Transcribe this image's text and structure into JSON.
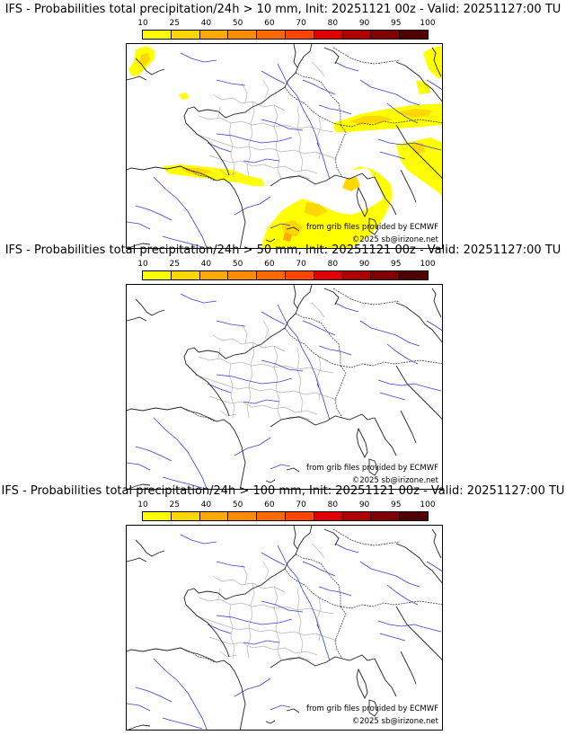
{
  "colorbar": {
    "labels": [
      "10",
      "25",
      "40",
      "50",
      "60",
      "70",
      "80",
      "90",
      "95",
      "100"
    ],
    "colors": [
      "#ffff00",
      "#ffd700",
      "#ffaa00",
      "#ff8c00",
      "#ff6a00",
      "#ff4500",
      "#e00000",
      "#b00000",
      "#800000",
      "#500000"
    ]
  },
  "credits": {
    "source": "from grib files provided by ECMWF",
    "copyright": "©2025 sb@irizone.net"
  },
  "panels": [
    {
      "title": "IFS - Probabilities total precipitation/24h > 10 mm, Init: 20251121 00z - Valid: 20251127:00 TU",
      "threshold_mm": 10,
      "has_precip": true
    },
    {
      "title": "IFS - Probabilities total precipitation/24h > 50 mm, Init: 20251121 00z - Valid: 20251127:00 TU",
      "threshold_mm": 50,
      "has_precip": false
    },
    {
      "title": "IFS - Probabilities total precipitation/24h > 100 mm, Init: 20251121 00z - Valid: 20251127:00 TU",
      "threshold_mm": 100,
      "has_precip": false
    }
  ]
}
